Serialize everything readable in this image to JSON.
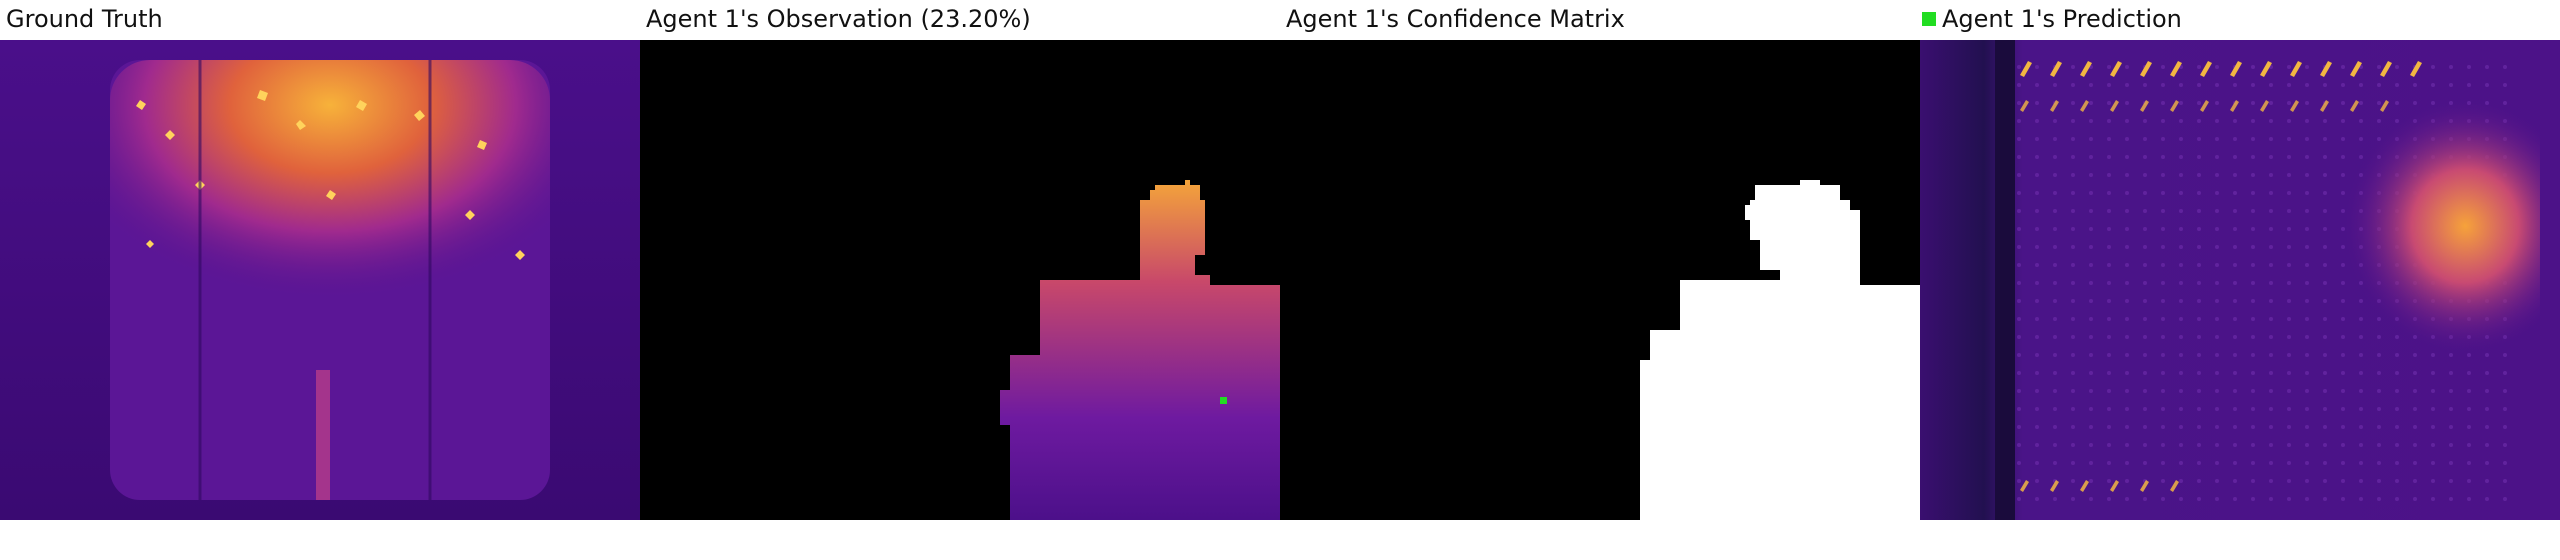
{
  "titles": {
    "ground_truth": "Ground Truth",
    "observation": "Agent 1's Observation (23.20%)",
    "confidence": "Agent 1's Confidence Matrix",
    "prediction": "Agent 1's Prediction"
  },
  "observation_coverage_percent": 23.2,
  "colors": {
    "background": "#ffffff",
    "heatmap_low": "#3c0a78",
    "heatmap_mid": "#8a1fa8",
    "heatmap_high": "#f5a623",
    "heatmap_peak": "#ffe066",
    "mask_black": "#000000",
    "mask_white": "#ffffff",
    "agent_marker": "#22dd22"
  },
  "icons": {
    "agent_marker": "green-square-icon"
  }
}
